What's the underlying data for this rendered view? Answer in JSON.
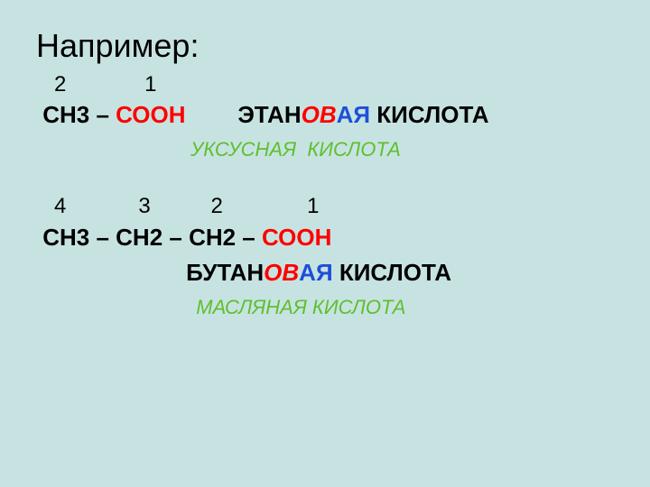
{
  "background_color": "#c7e3e1",
  "text_color_default": "#000000",
  "color_red": "#ff0000",
  "color_blue": "#1f4fd8",
  "color_green": "#5fbf2f",
  "title": "Например:",
  "ethane": {
    "nums_indent": "   ",
    "num_a": "2",
    "nums_gap": "             ",
    "num_b": "1",
    "line_indent": " ",
    "part_ch3": "СН3 – ",
    "part_cooh": "СООН",
    "name_gap": "        ",
    "name_root": "ЭТАН",
    "name_ov": "ОВ",
    "name_aya": "АЯ",
    "name_acid": " КИСЛОТА",
    "trivial_indent": "                            ",
    "trivial_name": "УКСУСНАЯ  КИСЛОТА"
  },
  "butane": {
    "nums_indent": "   ",
    "num_a": "4",
    "gap_ab": "            ",
    "num_b": "3",
    "gap_bc": "          ",
    "num_c": "2",
    "gap_cd": "              ",
    "num_d": "1",
    "line_indent": " ",
    "part_chain": "СН3 – СН2 – СН2 – ",
    "part_cooh": "СООН",
    "name_indent": "                       ",
    "name_root": "БУТАН",
    "name_ov": "ОВ",
    "name_aya": "АЯ",
    "name_acid": " КИСЛОТА",
    "trivial_indent": "                             ",
    "trivial_name": "МАСЛЯНАЯ КИСЛОТА"
  }
}
